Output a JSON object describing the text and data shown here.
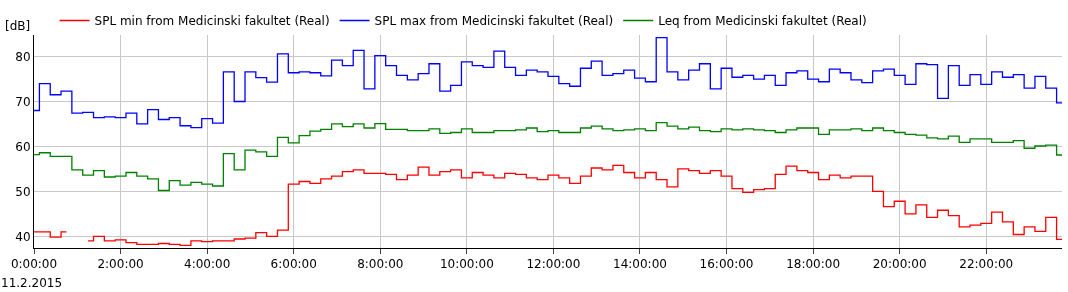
{
  "chart_data": {
    "type": "step",
    "ylabel": "[dB]",
    "x": [
      0,
      0.25,
      0.5,
      0.75,
      1,
      1.25,
      1.5,
      1.75,
      2,
      2.25,
      2.5,
      2.75,
      3,
      3.25,
      3.5,
      3.75,
      4,
      4.25,
      4.5,
      4.75,
      5,
      5.25,
      5.5,
      5.75,
      6,
      6.25,
      6.5,
      6.75,
      7,
      7.25,
      7.5,
      7.75,
      8,
      8.25,
      8.5,
      8.75,
      9,
      9.25,
      9.5,
      9.75,
      10,
      10.25,
      10.5,
      10.75,
      11,
      11.25,
      11.5,
      11.75,
      12,
      12.25,
      12.5,
      12.75,
      13,
      13.25,
      13.5,
      13.75,
      14,
      14.25,
      14.5,
      14.75,
      15,
      15.25,
      15.5,
      15.75,
      16,
      16.25,
      16.5,
      16.75,
      17,
      17.25,
      17.5,
      17.75,
      18,
      18.25,
      18.5,
      18.75,
      19,
      19.25,
      19.5,
      19.75,
      20,
      20.25,
      20.5,
      20.75,
      21,
      21.25,
      21.5,
      21.75,
      22,
      22.25,
      22.5,
      22.75,
      23,
      23.25,
      23.5,
      23.75
    ],
    "series": [
      {
        "name": "SPL min from Medicinski fakultet (Real)",
        "color": "#ff0000",
        "values": [
          41.0,
          41.0,
          39.8,
          41.0,
          null,
          39.0,
          40.0,
          39.0,
          39.2,
          38.6,
          38.2,
          38.2,
          38.4,
          38.2,
          38.0,
          39.0,
          38.8,
          39.0,
          39.0,
          39.4,
          39.6,
          40.8,
          40.0,
          41.4,
          51.6,
          52.2,
          51.8,
          52.8,
          53.4,
          54.4,
          54.8,
          54.0,
          54.0,
          53.8,
          52.6,
          53.6,
          55.4,
          53.6,
          54.4,
          54.8,
          53.0,
          54.2,
          53.6,
          53.0,
          54.0,
          53.8,
          53.0,
          52.6,
          53.6,
          53.0,
          51.8,
          53.4,
          55.2,
          54.8,
          55.8,
          54.2,
          53.0,
          54.2,
          52.6,
          51.0,
          55.0,
          54.6,
          54.0,
          54.6,
          53.4,
          50.6,
          49.8,
          50.4,
          50.6,
          53.8,
          55.6,
          54.6,
          54.2,
          52.6,
          53.6,
          53.0,
          53.4,
          53.4,
          50.0,
          46.6,
          47.8,
          45.0,
          47.0,
          44.2,
          45.8,
          44.6,
          42.1,
          42.5,
          42.9,
          45.4,
          43.2,
          40.4,
          42.1,
          41.1,
          44.2,
          39.3
        ]
      },
      {
        "name": "SPL max from Medicinski fakultet (Real)",
        "color": "#0000ff",
        "values": [
          68.0,
          74.0,
          71.5,
          72.3,
          67.4,
          67.6,
          66.4,
          66.6,
          66.4,
          67.4,
          65.0,
          68.2,
          66.0,
          66.4,
          64.6,
          64.2,
          66.2,
          65.2,
          76.6,
          70.0,
          76.6,
          75.3,
          74.3,
          80.6,
          76.4,
          76.6,
          76.4,
          75.7,
          79.2,
          78.0,
          81.4,
          72.8,
          80.2,
          78.0,
          75.8,
          74.8,
          76.2,
          78.4,
          72.3,
          73.6,
          78.8,
          78.0,
          77.6,
          81.2,
          77.6,
          75.8,
          77.0,
          76.6,
          75.6,
          74.0,
          73.4,
          77.4,
          79.0,
          75.8,
          76.2,
          77.0,
          75.2,
          74.4,
          84.2,
          76.6,
          74.8,
          77.0,
          78.4,
          72.8,
          77.4,
          75.4,
          75.8,
          75.0,
          75.8,
          73.6,
          76.4,
          76.8,
          75.0,
          74.4,
          77.2,
          76.4,
          74.8,
          74.2,
          76.8,
          77.2,
          75.8,
          73.8,
          78.4,
          78.2,
          70.7,
          78.0,
          73.6,
          76.0,
          73.8,
          76.6,
          75.4,
          76.0,
          73.0,
          75.6,
          73.0,
          69.7
        ]
      },
      {
        "name": "Leq from Medicinski fakultet (Real)",
        "color": "#008000",
        "values": [
          58.2,
          58.6,
          57.8,
          57.8,
          54.8,
          53.6,
          54.6,
          53.2,
          53.4,
          54.2,
          53.4,
          52.8,
          50.2,
          52.4,
          51.4,
          52.0,
          51.6,
          51.2,
          58.4,
          54.8,
          59.2,
          58.8,
          57.8,
          62.0,
          60.8,
          62.4,
          63.4,
          63.8,
          65.0,
          64.4,
          65.0,
          64.1,
          65.1,
          63.8,
          63.8,
          63.5,
          63.5,
          63.9,
          62.9,
          63.1,
          63.9,
          63.1,
          63.1,
          63.5,
          63.5,
          63.7,
          64.1,
          63.3,
          63.5,
          63.1,
          63.1,
          64.1,
          64.5,
          63.9,
          63.5,
          63.7,
          63.9,
          63.5,
          65.3,
          64.5,
          63.9,
          64.3,
          63.5,
          63.3,
          63.9,
          63.7,
          63.9,
          63.7,
          63.5,
          63.1,
          63.7,
          64.1,
          64.1,
          62.7,
          63.7,
          63.7,
          63.9,
          63.5,
          64.1,
          63.5,
          63.1,
          62.7,
          62.5,
          61.9,
          61.7,
          62.3,
          60.9,
          61.7,
          61.7,
          60.9,
          60.9,
          61.3,
          59.6,
          60.1,
          60.3,
          58.1
        ]
      }
    ],
    "xlim": [
      0,
      23.75
    ],
    "xticks": [
      {
        "value": 0,
        "label": "0:00:00"
      },
      {
        "value": 2,
        "label": "2:00:00"
      },
      {
        "value": 4,
        "label": "4:00:00"
      },
      {
        "value": 6,
        "label": "6:00:00"
      },
      {
        "value": 8,
        "label": "8:00:00"
      },
      {
        "value": 10,
        "label": "10:00:00"
      },
      {
        "value": 12,
        "label": "12:00:00"
      },
      {
        "value": 14,
        "label": "14:00:00"
      },
      {
        "value": 16,
        "label": "16:00:00"
      },
      {
        "value": 18,
        "label": "18:00:00"
      },
      {
        "value": 20,
        "label": "20:00:00"
      },
      {
        "value": 22,
        "label": "22:00:00"
      }
    ],
    "ylim": [
      37.4,
      84.8
    ],
    "yticks": [
      40,
      50,
      60,
      70,
      80
    ],
    "annotations": [
      "11.2.2015"
    ],
    "grid": true,
    "legend": "top",
    "line_style": "solid"
  }
}
